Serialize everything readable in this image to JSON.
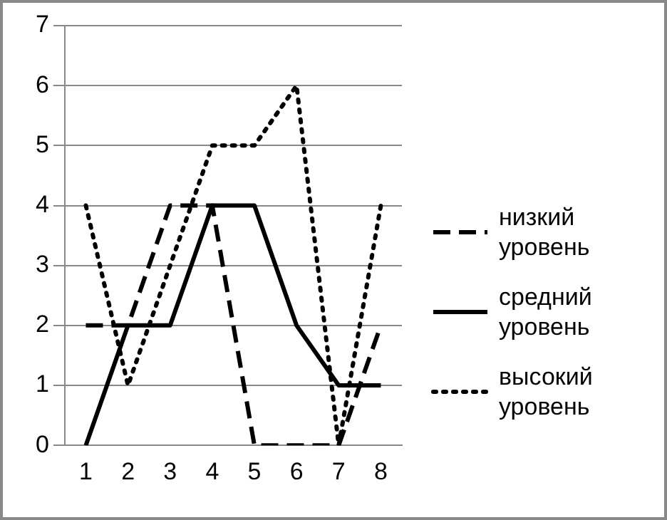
{
  "chart_data": {
    "type": "line",
    "categories": [
      "1",
      "2",
      "3",
      "4",
      "5",
      "6",
      "7",
      "8"
    ],
    "series": [
      {
        "name": "низкий уровень",
        "color": "#000000",
        "line_style": "dashed",
        "values": [
          2,
          2,
          4,
          4,
          0,
          0,
          0,
          2
        ]
      },
      {
        "name": "средний уровень",
        "color": "#000000",
        "line_style": "solid",
        "values": [
          0,
          2,
          2,
          4,
          4,
          2,
          1,
          1
        ]
      },
      {
        "name": "высокий уровень",
        "color": "#000000",
        "line_style": "dotted",
        "values": [
          4,
          1,
          3,
          5,
          5,
          6,
          0,
          4
        ]
      }
    ],
    "ylim": [
      0,
      7
    ],
    "yticks": [
      0,
      1,
      2,
      3,
      4,
      5,
      6,
      7
    ],
    "grid": "y",
    "legend": "right",
    "marker": "none"
  }
}
